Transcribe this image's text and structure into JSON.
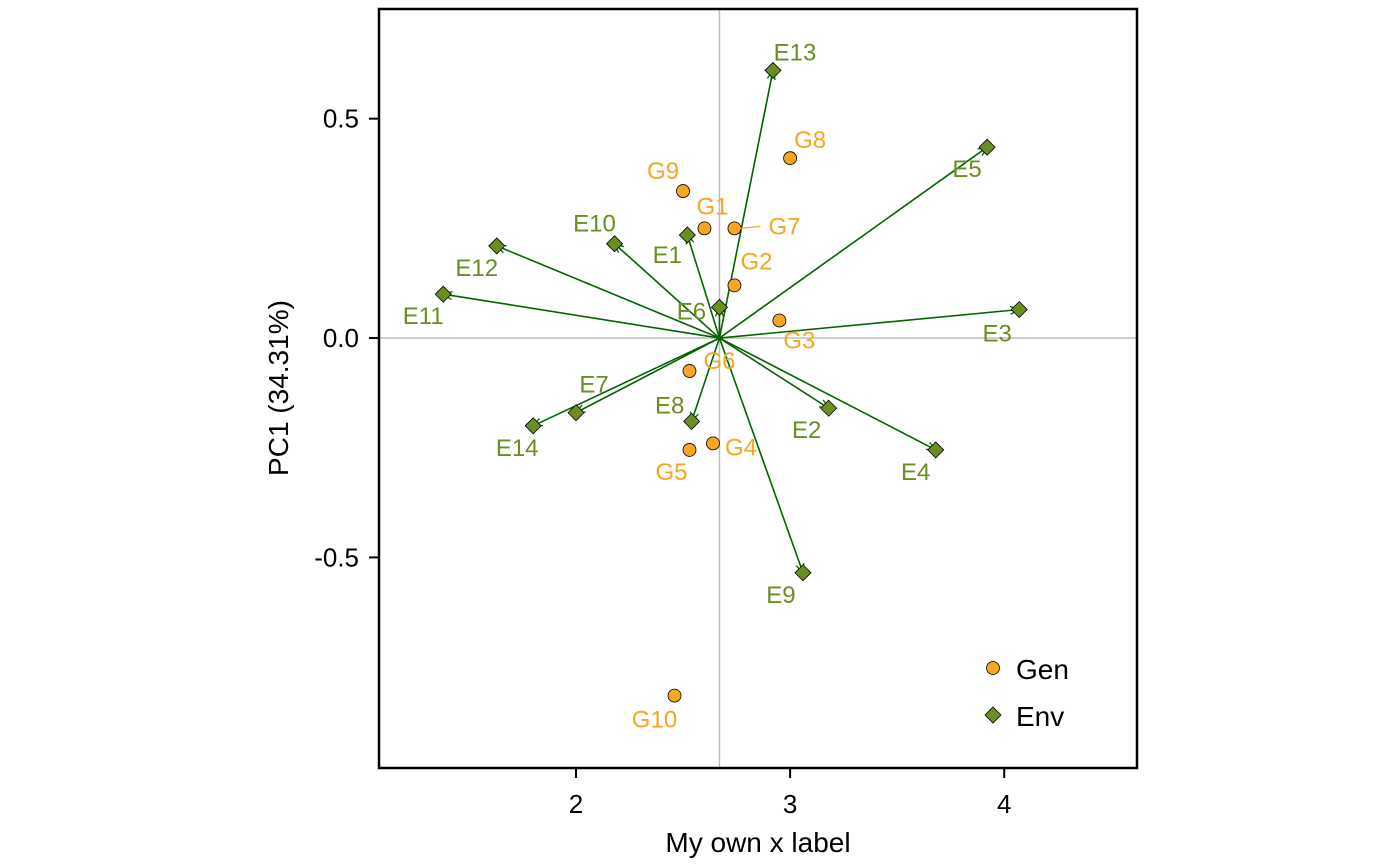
{
  "chart_data": {
    "type": "scatter",
    "xlabel": "My own x label",
    "ylabel": "PC1 (34.31%)",
    "xlim": [
      1.08,
      4.62
    ],
    "ylim": [
      -0.98,
      0.75
    ],
    "xticks": [
      2,
      3,
      4
    ],
    "yticks": [
      0.5,
      0.0,
      -0.5
    ],
    "ytick_labels": [
      "0.5",
      "0.0",
      "-0.5"
    ],
    "origin": [
      2.67,
      0.0
    ],
    "grid": false,
    "legend_position": "bottom-right",
    "series": [
      {
        "name": "Gen",
        "marker": "circle",
        "color": "#F5A623",
        "points": [
          {
            "label": "G1",
            "x": 2.6,
            "y": 0.25
          },
          {
            "label": "G2",
            "x": 2.74,
            "y": 0.12
          },
          {
            "label": "G3",
            "x": 2.95,
            "y": 0.04
          },
          {
            "label": "G4",
            "x": 2.64,
            "y": -0.24
          },
          {
            "label": "G5",
            "x": 2.53,
            "y": -0.255
          },
          {
            "label": "G6",
            "x": 2.53,
            "y": -0.075
          },
          {
            "label": "G7",
            "x": 2.74,
            "y": 0.25
          },
          {
            "label": "G8",
            "x": 3.0,
            "y": 0.41
          },
          {
            "label": "G9",
            "x": 2.5,
            "y": 0.335
          },
          {
            "label": "G10",
            "x": 2.46,
            "y": -0.815
          }
        ]
      },
      {
        "name": "Env",
        "marker": "diamond",
        "color": "#6B8E23",
        "vectors_from_origin": true,
        "points": [
          {
            "label": "E1",
            "x": 2.52,
            "y": 0.235
          },
          {
            "label": "E2",
            "x": 3.18,
            "y": -0.16
          },
          {
            "label": "E3",
            "x": 4.07,
            "y": 0.065
          },
          {
            "label": "E4",
            "x": 3.68,
            "y": -0.255
          },
          {
            "label": "E5",
            "x": 3.92,
            "y": 0.435
          },
          {
            "label": "E6",
            "x": 2.67,
            "y": 0.07
          },
          {
            "label": "E7",
            "x": 2.0,
            "y": -0.17
          },
          {
            "label": "E8",
            "x": 2.54,
            "y": -0.19
          },
          {
            "label": "E9",
            "x": 3.06,
            "y": -0.535
          },
          {
            "label": "E10",
            "x": 2.18,
            "y": 0.215
          },
          {
            "label": "E11",
            "x": 1.38,
            "y": 0.1
          },
          {
            "label": "E12",
            "x": 1.63,
            "y": 0.21
          },
          {
            "label": "E13",
            "x": 2.92,
            "y": 0.61
          },
          {
            "label": "E14",
            "x": 1.8,
            "y": -0.2
          }
        ]
      }
    ]
  },
  "colors": {
    "gen": "#F5A623",
    "env_marker": "#6B8E23",
    "env_label": "#6B8E23",
    "vector": "#006400",
    "reference_line": "#BEBEBE",
    "frame": "#000000"
  }
}
